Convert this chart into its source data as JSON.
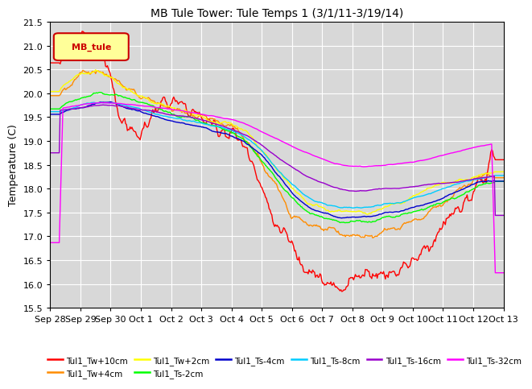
{
  "title": "MB Tule Tower: Tule Temps 1 (3/1/11-3/19/14)",
  "ylabel": "Temperature (C)",
  "ylim": [
    15.5,
    21.5
  ],
  "yticks": [
    15.5,
    16.0,
    16.5,
    17.0,
    17.5,
    18.0,
    18.5,
    19.0,
    19.5,
    20.0,
    20.5,
    21.0,
    21.5
  ],
  "bg_color": "#d8d8d8",
  "series": [
    {
      "label": "Tul1_Tw+10cm",
      "color": "#ff0000"
    },
    {
      "label": "Tul1_Tw+4cm",
      "color": "#ff8c00"
    },
    {
      "label": "Tul1_Tw+2cm",
      "color": "#ffff00"
    },
    {
      "label": "Tul1_Ts-2cm",
      "color": "#00ff00"
    },
    {
      "label": "Tul1_Ts-4cm",
      "color": "#0000cc"
    },
    {
      "label": "Tul1_Ts-8cm",
      "color": "#00ccff"
    },
    {
      "label": "Tul1_Ts-16cm",
      "color": "#9900cc"
    },
    {
      "label": "Tul1_Ts-32cm",
      "color": "#ff00ff"
    }
  ],
  "n_points": 500,
  "xticklabels": [
    "Sep 28",
    "Sep 29",
    "Sep 30",
    "Oct 1",
    "Oct 2",
    "Oct 3",
    "Oct 4",
    "Oct 5",
    "Oct 6",
    "Oct 7",
    "Oct 8",
    "Oct 9",
    "Oct 10",
    "Oct 11",
    "Oct 12",
    "Oct 13"
  ],
  "legend_box_color": "#ffff99",
  "legend_box_text": "MB_tule",
  "legend_box_text_color": "#cc0000"
}
